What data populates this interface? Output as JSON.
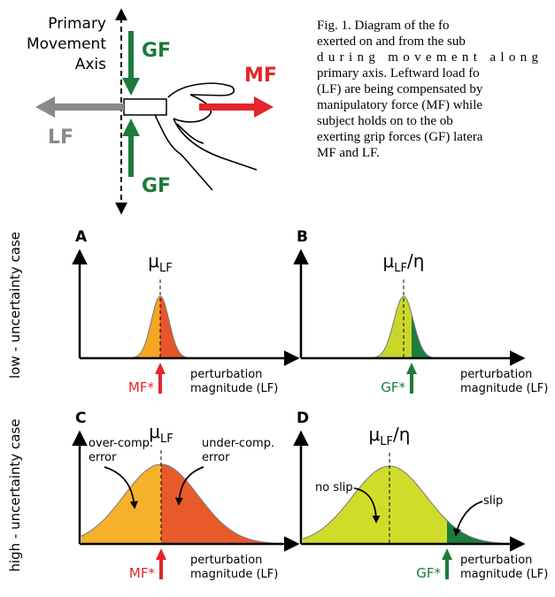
{
  "diagram": {
    "axis_label": [
      "Primary",
      "Movement",
      "Axis"
    ],
    "gf_top": "GF",
    "gf_bottom": "GF",
    "mf": "MF",
    "lf": "LF"
  },
  "caption": [
    "Fig. 1.  Diagram of the fo",
    "exerted on and from the sub",
    "during movement along",
    "primary axis. Leftward load fo",
    "(LF) are being compensated by",
    "manipulatory force (MF) while",
    "subject holds on to the ob",
    "exerting grip forces (GF) latera",
    "MF and LF."
  ],
  "row_labels": [
    "low - uncertainty case",
    "high - uncertainty case"
  ],
  "panels": [
    {
      "letter": "A",
      "mean_symbol": "μ",
      "mean_subscript": "LF",
      "x_label": [
        "perturbation",
        "magnitude (LF)"
      ],
      "force_label": "MF*"
    },
    {
      "letter": "B",
      "mean_symbol": "μ",
      "mean_subscript": "LF",
      "mean_suffix": "/η",
      "x_label": [
        "perturbation",
        "magnitude (LF)"
      ],
      "force_label": "GF*"
    },
    {
      "letter": "C",
      "mean_symbol": "μ",
      "mean_subscript": "LF",
      "x_label": [
        "perturbation",
        "magnitude (LF)"
      ],
      "force_label": "MF*",
      "annotations": [
        [
          "over-comp.",
          "error"
        ],
        [
          "under-comp.",
          "error"
        ]
      ]
    },
    {
      "letter": "D",
      "mean_symbol": "μ",
      "mean_subscript": "LF",
      "mean_suffix": "/η",
      "x_label": [
        "perturbation",
        "magnitude (LF)"
      ],
      "force_label": "GF*",
      "annotations": [
        [
          "no slip"
        ],
        [
          "slip"
        ]
      ]
    }
  ]
}
